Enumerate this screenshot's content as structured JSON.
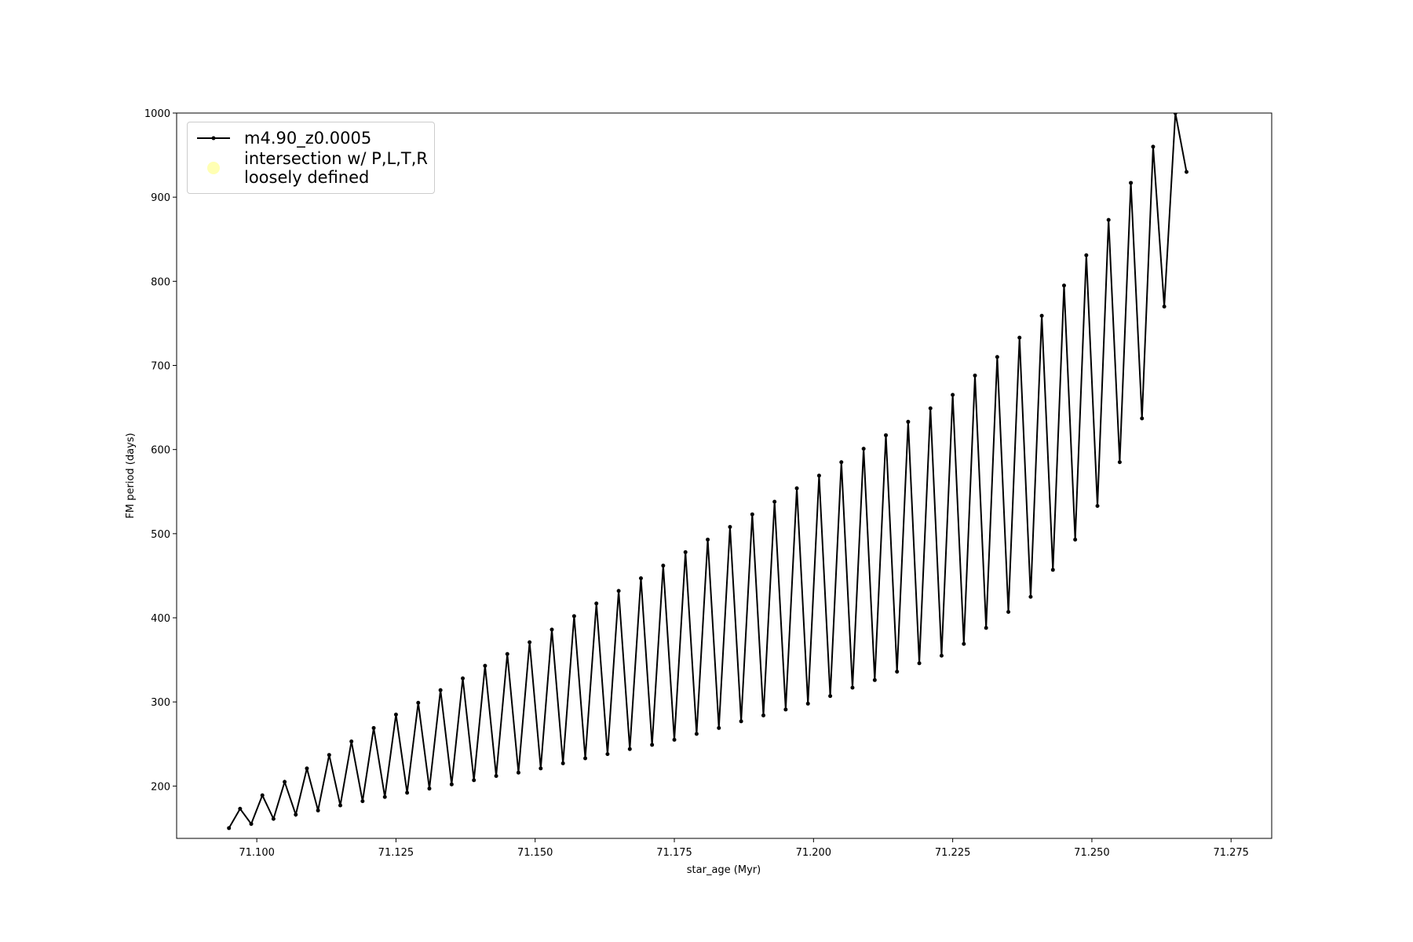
{
  "chart_data": {
    "type": "line",
    "x_label": "star_age (Myr)",
    "y_label": "FM period (days)",
    "xlim": [
      71.0856,
      71.2823
    ],
    "ylim": [
      137.8,
      1000
    ],
    "xticks": [
      {
        "value": 71.1,
        "label": "71.100"
      },
      {
        "value": 71.125,
        "label": "71.125"
      },
      {
        "value": 71.15,
        "label": "71.150"
      },
      {
        "value": 71.175,
        "label": "71.175"
      },
      {
        "value": 71.2,
        "label": "71.200"
      },
      {
        "value": 71.225,
        "label": "71.225"
      },
      {
        "value": 71.25,
        "label": "71.250"
      },
      {
        "value": 71.275,
        "label": "71.275"
      }
    ],
    "yticks": [
      200,
      300,
      400,
      500,
      600,
      700,
      800,
      900,
      1000
    ],
    "legend": "upper left",
    "series": [
      {
        "name": "m4.90_z0.0005",
        "color": "#000000",
        "marker": true,
        "x": [
          71.095,
          71.097,
          71.099,
          71.101,
          71.103,
          71.105,
          71.107,
          71.109,
          71.111,
          71.113,
          71.115,
          71.117,
          71.119,
          71.121,
          71.123,
          71.125,
          71.127,
          71.129,
          71.131,
          71.133,
          71.135,
          71.137,
          71.139,
          71.141,
          71.143,
          71.145,
          71.147,
          71.149,
          71.151,
          71.153,
          71.155,
          71.157,
          71.159,
          71.161,
          71.163,
          71.165,
          71.167,
          71.169,
          71.171,
          71.173,
          71.175,
          71.177,
          71.179,
          71.181,
          71.183,
          71.185,
          71.187,
          71.189,
          71.191,
          71.193,
          71.195,
          71.197,
          71.199,
          71.201,
          71.203,
          71.205,
          71.207,
          71.209,
          71.211,
          71.213,
          71.215,
          71.217,
          71.219,
          71.221,
          71.223,
          71.225,
          71.227,
          71.229,
          71.231,
          71.233,
          71.235,
          71.237,
          71.239,
          71.241,
          71.243,
          71.245,
          71.247,
          71.249,
          71.251,
          71.253,
          71.255,
          71.257,
          71.259,
          71.261,
          71.263,
          71.265,
          71.267
        ],
        "values": [
          150,
          173,
          155,
          189,
          161,
          205,
          166,
          221,
          171,
          237,
          177,
          253,
          182,
          269,
          187,
          285,
          192,
          299,
          197,
          314,
          202,
          328,
          207,
          343,
          212,
          357,
          216,
          371,
          221,
          386,
          227,
          402,
          233,
          417,
          238,
          432,
          244,
          447,
          249,
          462,
          255,
          478,
          262,
          493,
          269,
          508,
          277,
          523,
          284,
          538,
          291,
          554,
          298,
          569,
          307,
          585,
          317,
          601,
          326,
          617,
          336,
          633,
          346,
          649,
          355,
          665,
          369,
          688,
          388,
          710,
          407,
          733,
          425,
          759,
          457,
          795,
          493,
          831,
          533,
          873,
          585,
          917,
          637,
          960,
          770,
          1000,
          930
        ]
      },
      {
        "name": "intersection w/ P,L,T,R\nloosely defined",
        "color": "#ffffb3",
        "marker": true,
        "line": false,
        "x": [],
        "values": []
      }
    ]
  }
}
